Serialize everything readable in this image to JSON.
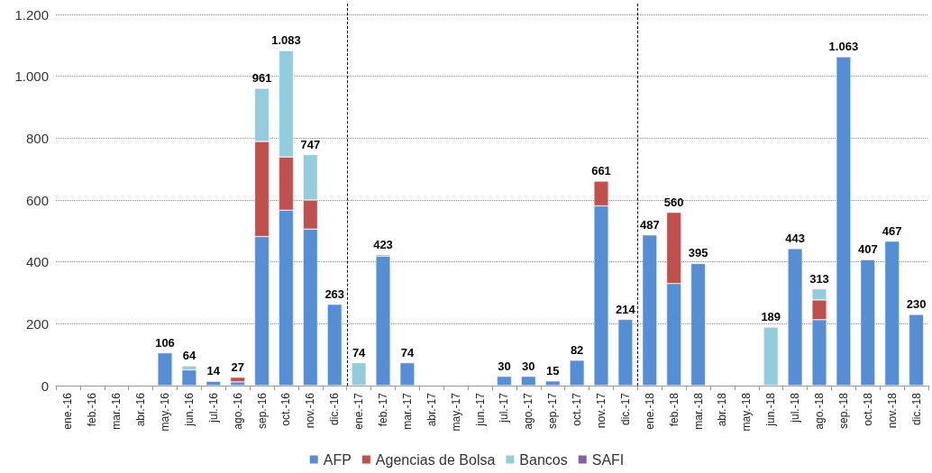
{
  "chart_data": {
    "type": "bar",
    "stacked": true,
    "categories": [
      "ene.-16",
      "feb.-16",
      "mar.-16",
      "abr.-16",
      "may.-16",
      "jun.-16",
      "jul.-16",
      "ago.-16",
      "sep.-16",
      "oct.-16",
      "nov.-16",
      "dic.-16",
      "ene.-17",
      "feb.-17",
      "mar.-17",
      "abr.-17",
      "may.-17",
      "jun.-17",
      "jul.-17",
      "ago.-17",
      "sep.-17",
      "oct.-17",
      "nov.-17",
      "dic.-17",
      "ene.-18",
      "feb.-18",
      "mar.-18",
      "abr.-18",
      "may.-18",
      "jun.-18",
      "jul.-18",
      "ago.-18",
      "sep.-18",
      "oct.-18",
      "nov.-18",
      "dic.-18"
    ],
    "series": [
      {
        "name": "AFP",
        "color": "#558ed5",
        "values": [
          null,
          null,
          null,
          null,
          106,
          51,
          14,
          12,
          482,
          567,
          506,
          263,
          null,
          419,
          74,
          null,
          null,
          null,
          30,
          30,
          15,
          82,
          581,
          214,
          487,
          330,
          395,
          null,
          null,
          null,
          443,
          213,
          1063,
          407,
          467,
          230
        ]
      },
      {
        "name": "Agencias de Bolsa",
        "color": "#c0504d",
        "values": [
          null,
          null,
          null,
          null,
          null,
          null,
          null,
          15,
          307,
          172,
          94,
          null,
          null,
          4,
          null,
          null,
          null,
          null,
          null,
          null,
          null,
          null,
          80,
          null,
          null,
          230,
          null,
          null,
          null,
          null,
          null,
          64,
          null,
          null,
          null,
          null
        ]
      },
      {
        "name": "Bancos",
        "color": "#93cddd",
        "values": [
          null,
          null,
          null,
          null,
          null,
          13,
          null,
          null,
          172,
          344,
          147,
          null,
          74,
          null,
          null,
          null,
          null,
          null,
          null,
          null,
          null,
          null,
          null,
          null,
          null,
          null,
          null,
          null,
          null,
          189,
          null,
          36,
          null,
          null,
          null,
          null
        ]
      },
      {
        "name": "SAFI",
        "color": "#8064a2",
        "values": [
          null,
          null,
          null,
          null,
          null,
          null,
          null,
          null,
          null,
          null,
          null,
          null,
          null,
          null,
          null,
          null,
          null,
          null,
          null,
          null,
          null,
          null,
          null,
          null,
          null,
          null,
          null,
          null,
          null,
          null,
          null,
          null,
          null,
          null,
          null,
          null
        ]
      }
    ],
    "totals": [
      null,
      null,
      null,
      null,
      "106",
      "64",
      "14",
      "27",
      "961",
      "1.083",
      "747",
      "263",
      "74",
      "423",
      "74",
      null,
      null,
      null,
      "30",
      "30",
      "15",
      "82",
      "661",
      "214",
      "487",
      "560",
      "395",
      null,
      null,
      "189",
      "443",
      "313",
      "1.063",
      "407",
      "467",
      "230"
    ],
    "ylim": [
      0,
      1200
    ],
    "yticks": [
      0,
      200,
      400,
      600,
      800,
      {
        "value": 1000,
        "label": "1.000"
      },
      {
        "value": 1200,
        "label": "1.200"
      }
    ],
    "grid": "y",
    "legend": "bottom"
  }
}
